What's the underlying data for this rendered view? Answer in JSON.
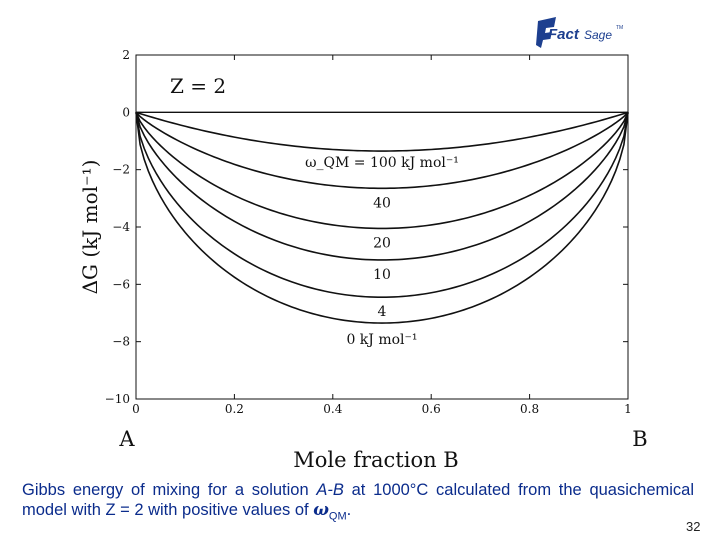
{
  "logo": {
    "text_a": "Fact",
    "text_b": "Sage",
    "tm": "TM",
    "color": "#1d3f8f"
  },
  "chart_data": {
    "type": "line",
    "title": "",
    "xlabel": "Mole fraction B",
    "ylabel": "ΔG (kJ mol⁻¹)",
    "xlim": [
      0,
      1
    ],
    "ylim": [
      -10,
      2
    ],
    "x_ticks": [
      "0",
      "0.2",
      "0.4",
      "0.6",
      "0.8",
      "1"
    ],
    "y_ticks": [
      "2",
      "0",
      "−2",
      "−4",
      "−6",
      "−8",
      "−10"
    ],
    "left_component": "A",
    "right_component": "B",
    "annotation_z": "Z = 2",
    "series": [
      {
        "name": "100",
        "omega_kj_per_mol": 100,
        "label": "ω_QM = 100 kJ mol⁻¹",
        "min_value": -1.35
      },
      {
        "name": "40",
        "omega_kj_per_mol": 40,
        "label": "40",
        "min_value": -2.65
      },
      {
        "name": "20",
        "omega_kj_per_mol": 20,
        "label": "20",
        "min_value": -4.05
      },
      {
        "name": "10",
        "omega_kj_per_mol": 10,
        "label": "10",
        "min_value": -5.15
      },
      {
        "name": "4",
        "omega_kj_per_mol": 4,
        "label": "4",
        "min_value": -6.45
      },
      {
        "name": "0",
        "omega_kj_per_mol": 0,
        "label": "0 kJ mol⁻¹",
        "min_value": -7.35
      }
    ]
  },
  "caption": {
    "part1": "Gibbs energy of mixing for a solution ",
    "solution": "A-B",
    "part2": " at 1000°C calculated from the quasichemical model with Z = 2 with positive values of ",
    "omega": "ω",
    "omega_sub": "QM",
    "part3": "."
  },
  "slide_number": "32"
}
